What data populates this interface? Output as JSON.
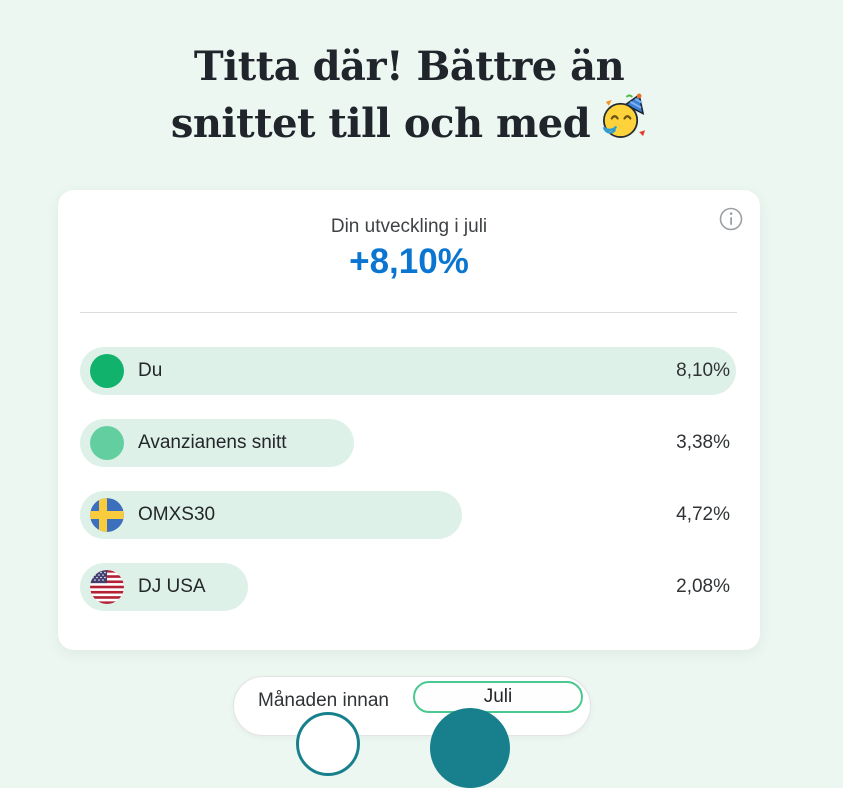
{
  "page": {
    "background_color": "#edf7f2",
    "title_line1": "Titta där! Bättre än",
    "title_line2": "snittet till och med",
    "title_emoji": "party-face"
  },
  "card": {
    "subtitle": "Din utveckling i juli",
    "value": "+8,10%",
    "value_color": "#0b76d1",
    "info_icon": "info-icon"
  },
  "chart_data": {
    "type": "bar",
    "orientation": "horizontal",
    "title": "Din utveckling i juli",
    "max_value": 8.1,
    "bar_background_color": "#def1e8",
    "rows": [
      {
        "label": "Du",
        "value": 8.1,
        "value_label": "8,10%",
        "icon": "green-dot",
        "icon_color": "#10b26c"
      },
      {
        "label": "Avanzianens snitt",
        "value": 3.38,
        "value_label": "3,38%",
        "icon": "light-green-dot",
        "icon_color": "#63cfa0"
      },
      {
        "label": "OMXS30",
        "value": 4.72,
        "value_label": "4,72%",
        "icon": "sweden-flag"
      },
      {
        "label": "DJ USA",
        "value": 2.08,
        "value_label": "2,08%",
        "icon": "usa-flag"
      }
    ]
  },
  "toggle": {
    "options": [
      {
        "label": "Månaden innan",
        "selected": false
      },
      {
        "label": "Juli",
        "selected": true
      }
    ],
    "selected_border_color": "#4bc88f"
  },
  "decor": {
    "circle_color": "#17808c"
  }
}
